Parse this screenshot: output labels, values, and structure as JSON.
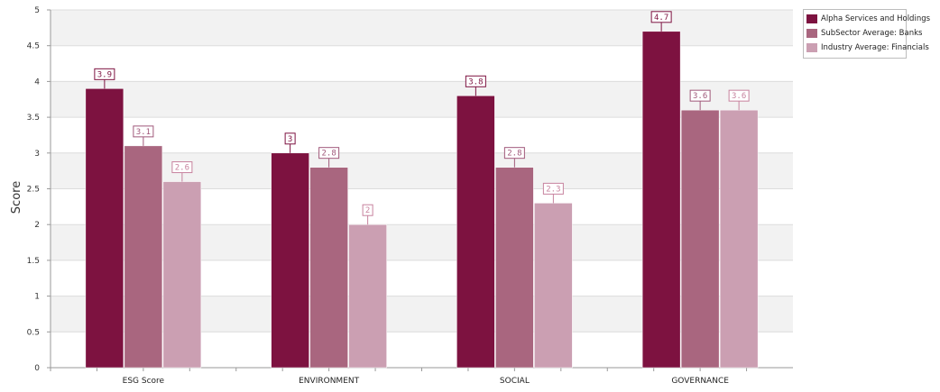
{
  "chart_data": {
    "type": "bar",
    "categories": [
      "ESG Score",
      "ENVIRONMENT",
      "SOCIAL",
      "GOVERNANCE"
    ],
    "series": [
      {
        "name": "Alpha Services and Holdings",
        "values": [
          3.9,
          3.0,
          3.8,
          4.7
        ],
        "color": "#7d1240",
        "label_color": "#7d1240"
      },
      {
        "name": "SubSector Average: Banks",
        "values": [
          3.1,
          2.8,
          2.8,
          3.6
        ],
        "color": "#a9667f",
        "label_color": "#a0587a"
      },
      {
        "name": "Industry Average: Financials",
        "values": [
          2.6,
          2.0,
          2.3,
          3.6
        ],
        "color": "#cb9fb2",
        "label_color": "#c7829e"
      }
    ],
    "data_labels": [
      [
        "3.9",
        "3",
        "3.8",
        "4.7"
      ],
      [
        "3.1",
        "2.8",
        "2.8",
        "3.6"
      ],
      [
        "2.6",
        "2",
        "2.3",
        "3.6"
      ]
    ],
    "ylabel": "Score",
    "ylim": [
      0,
      5
    ],
    "yticks": [
      "0",
      "0.5",
      "1",
      "1.5",
      "2",
      "2.5",
      "3",
      "3.5",
      "4",
      "4.5",
      "5"
    ],
    "grid": true,
    "legend_position": "top-right"
  }
}
